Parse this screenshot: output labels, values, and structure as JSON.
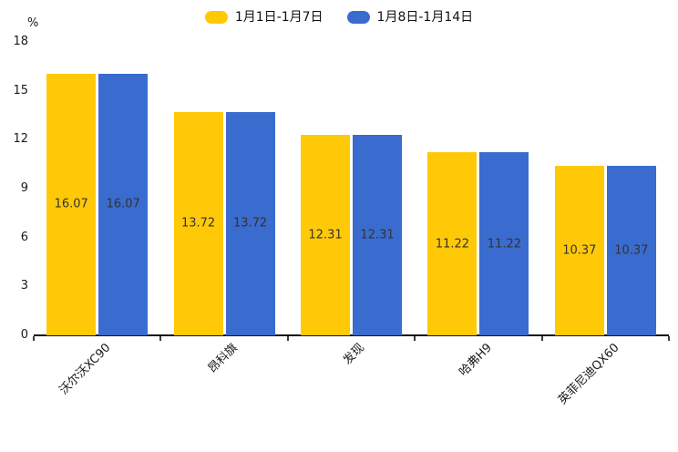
{
  "chart_data": {
    "type": "bar",
    "title": "",
    "ylabel": "%",
    "categories": [
      "沃尔沃XC90",
      "昂科旗",
      "发现",
      "哈弗H9",
      "英菲尼迪QX60"
    ],
    "series": [
      {
        "name": "1月1日-1月7日",
        "color": "#FFC907",
        "values": [
          16.07,
          13.72,
          12.31,
          11.22,
          10.37
        ]
      },
      {
        "name": "1月8日-1月14日",
        "color": "#3A6BCE",
        "values": [
          16.07,
          13.72,
          12.31,
          11.22,
          10.37
        ]
      }
    ],
    "ylim": [
      0,
      18
    ],
    "y_ticks": [
      0,
      3,
      6,
      9,
      12,
      15,
      18
    ],
    "legend_position": "top",
    "grid": false,
    "value_labels_shown": true,
    "value_label_decimals": 2
  },
  "colors": {
    "background": "#ffffff",
    "axis_line": "#141414",
    "tick_mark": "#3a3a3a",
    "tick_label": "#1a1a1a",
    "bar_value_label": "#333333",
    "legend_text": "#111111"
  }
}
